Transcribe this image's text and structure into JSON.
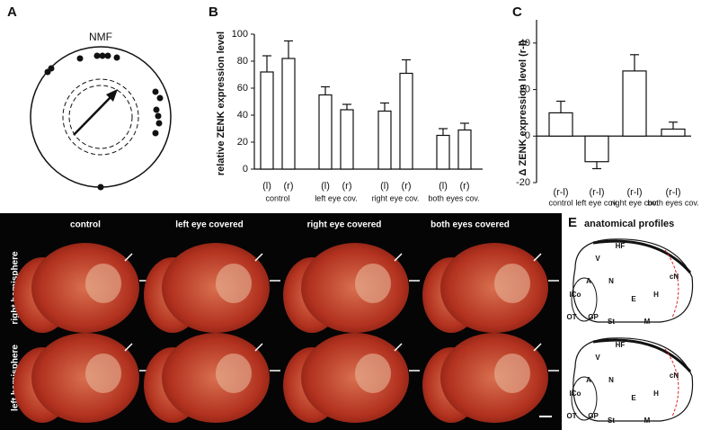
{
  "panel_labels": [
    "A",
    "B",
    "C",
    "D",
    "E"
  ],
  "panel_a": {
    "title": "NMF"
  },
  "chart_data": [
    {
      "type": "bar",
      "ylabel": "relative ZENK expression level",
      "categories": [
        "(l)",
        "(r)",
        "(l)",
        "(r)",
        "(l)",
        "(r)",
        "(l)",
        "(r)"
      ],
      "groups": [
        "control",
        "left eye cov.",
        "right eye cov.",
        "both eyes cov."
      ],
      "values": [
        72,
        82,
        55,
        44,
        43,
        71,
        25,
        29
      ],
      "errors": [
        12,
        13,
        6,
        4,
        6,
        10,
        5,
        5
      ],
      "ylim": [
        0,
        100
      ],
      "yticks": [
        0,
        20,
        40,
        60,
        80,
        100
      ],
      "color": "#ffffff"
    },
    {
      "type": "bar",
      "ylabel": "Δ ZENK expression level (r-l)",
      "categories": [
        "(r-l)",
        "(r-l)",
        "(r-l)",
        "(r-l)"
      ],
      "groups": [
        "control",
        "left eye cov.",
        "right eye cov.",
        "both eyes cov."
      ],
      "values": [
        10,
        -11,
        28,
        3
      ],
      "errors": [
        5,
        3,
        7,
        3
      ],
      "ylim": [
        -20,
        50
      ],
      "yticks": [
        -20,
        0,
        20,
        40
      ],
      "color": "#ffffff"
    }
  ],
  "panel_d": {
    "columns": [
      "control",
      "left eye covered",
      "right eye covered",
      "both eyes covered"
    ],
    "rows": [
      "right hemisphere",
      "left hemisphere"
    ]
  },
  "panel_e": {
    "title": "anatomical profiles",
    "regions": [
      "HF",
      "V",
      "A",
      "N",
      "E",
      "ICo",
      "OT",
      "GP",
      "St",
      "M",
      "H",
      "cN"
    ]
  }
}
